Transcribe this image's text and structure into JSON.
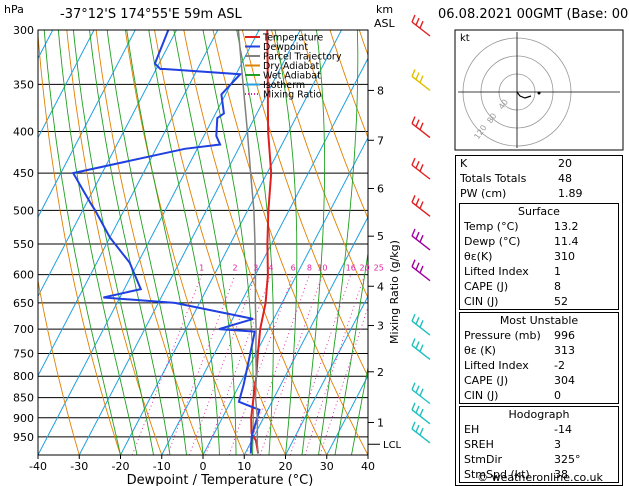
{
  "header": {
    "hpa_label": "hPa",
    "location": "-37°12'S  174°55'E  59m  ASL",
    "km_label": "km",
    "asl_label": "ASL",
    "datetime": "06.08.2021  00GMT  (Base: 00)"
  },
  "legend": [
    {
      "label": "Temperature",
      "color": "#e02020"
    },
    {
      "label": "Dewpoint",
      "color": "#2040e0"
    },
    {
      "label": "Parcel Trajectory",
      "color": "#808080"
    },
    {
      "label": "Dry Adiabat",
      "color": "#e08000"
    },
    {
      "label": "Wet Adiabat",
      "color": "#20a020"
    },
    {
      "label": "Isotherm",
      "color": "#20a0e0"
    },
    {
      "label": "Mixing Ratio",
      "color": "#e020a0"
    }
  ],
  "chart_data": {
    "type": "line",
    "xlabel": "Dewpoint / Temperature (°C)",
    "ylabel_right": "Mixing Ratio (g/kg)",
    "x_ticks": [
      -40,
      -30,
      -20,
      -10,
      0,
      10,
      20,
      30,
      40
    ],
    "pressure_levels": [
      300,
      350,
      400,
      450,
      500,
      550,
      600,
      650,
      700,
      750,
      800,
      850,
      900,
      950
    ],
    "km_ticks": [
      {
        "km": "1",
        "p": 912
      },
      {
        "km": "2",
        "p": 790
      },
      {
        "km": "3",
        "p": 693
      },
      {
        "km": "4",
        "p": 620
      },
      {
        "km": "5",
        "p": 538
      },
      {
        "km": "6",
        "p": 470
      },
      {
        "km": "7",
        "p": 410
      },
      {
        "km": "8",
        "p": 356
      }
    ],
    "lcl_label": "LCL",
    "lcl_p": 970,
    "mixing_ratio_labels": [
      "1",
      "2",
      "3",
      "4",
      "6",
      "8",
      "10",
      "16",
      "20",
      "25"
    ],
    "mixing_ratio_values": [
      1,
      2,
      3,
      4,
      6,
      8,
      10,
      16,
      20,
      25
    ],
    "series": [
      {
        "name": "Temperature",
        "color": "#e02020",
        "points": [
          [
            13.2,
            996
          ],
          [
            11.0,
            960
          ],
          [
            9.0,
            940
          ],
          [
            7.0,
            900
          ],
          [
            5.0,
            850
          ],
          [
            3.0,
            800
          ],
          [
            0.5,
            750
          ],
          [
            -2.0,
            700
          ],
          [
            -4.0,
            650
          ],
          [
            -7.0,
            600
          ],
          [
            -11.0,
            550
          ],
          [
            -15.0,
            500
          ],
          [
            -19.0,
            450
          ],
          [
            -25.0,
            400
          ],
          [
            -31.0,
            350
          ],
          [
            -38.0,
            300
          ]
        ]
      },
      {
        "name": "Dewpoint",
        "color": "#2040e0",
        "points": [
          [
            11.4,
            996
          ],
          [
            9.5,
            950
          ],
          [
            8.0,
            880
          ],
          [
            2.0,
            860
          ],
          [
            1.0,
            820
          ],
          [
            -1.0,
            760
          ],
          [
            -3.0,
            705
          ],
          [
            -12.0,
            700
          ],
          [
            -5.0,
            680
          ],
          [
            -26.0,
            650
          ],
          [
            -44.0,
            640
          ],
          [
            -36.0,
            625
          ],
          [
            -42.0,
            580
          ],
          [
            -50.0,
            540
          ],
          [
            -57.0,
            500
          ],
          [
            -59.0,
            490
          ],
          [
            -67.0,
            450
          ],
          [
            -43.0,
            420
          ],
          [
            -35.0,
            415
          ],
          [
            -37.0,
            405
          ],
          [
            -39.0,
            385
          ],
          [
            -38.0,
            380
          ],
          [
            -41.0,
            360
          ],
          [
            -39.0,
            340
          ],
          [
            -58.0,
            335
          ],
          [
            -59.0,
            335
          ],
          [
            -61.0,
            330
          ],
          [
            -62.0,
            300
          ]
        ]
      },
      {
        "name": "Parcel Trajectory",
        "color": "#808080",
        "points": [
          [
            13.2,
            996
          ],
          [
            11.8,
            970
          ],
          [
            8.5,
            900
          ],
          [
            5.5,
            850
          ],
          [
            3.0,
            800
          ],
          [
            0.0,
            750
          ],
          [
            -3.0,
            700
          ],
          [
            -6.5,
            650
          ],
          [
            -10.0,
            600
          ],
          [
            -14.0,
            550
          ],
          [
            -18.5,
            500
          ],
          [
            -24.0,
            450
          ],
          [
            -30.0,
            400
          ],
          [
            -37.0,
            350
          ],
          [
            -45.0,
            300
          ]
        ]
      }
    ],
    "wind_barbs": [
      {
        "p": 300,
        "color": "#e02020"
      },
      {
        "p": 350,
        "color": "#e0c000"
      },
      {
        "p": 400,
        "color": "#e02020"
      },
      {
        "p": 450,
        "color": "#e02020"
      },
      {
        "p": 500,
        "color": "#e02020"
      },
      {
        "p": 550,
        "color": "#a000a0"
      },
      {
        "p": 600,
        "color": "#a000a0"
      },
      {
        "p": 700,
        "color": "#20c0c0"
      },
      {
        "p": 750,
        "color": "#20c0c0"
      },
      {
        "p": 850,
        "color": "#20c0c0"
      },
      {
        "p": 900,
        "color": "#20c0c0"
      },
      {
        "p": 950,
        "color": "#20c0c0"
      }
    ]
  },
  "hodograph": {
    "unit": "kt",
    "ring_labels": [
      "40",
      "80",
      "120"
    ]
  },
  "indices": [
    {
      "label": "K",
      "value": "20"
    },
    {
      "label": "Totals Totals",
      "value": "48"
    },
    {
      "label": "PW (cm)",
      "value": "1.89"
    }
  ],
  "surface": {
    "title": "Surface",
    "rows": [
      {
        "label": "Temp (°C)",
        "value": "13.2"
      },
      {
        "label": "Dewp (°C)",
        "value": "11.4"
      },
      {
        "label": "θε(K)",
        "value": "310"
      },
      {
        "label": "Lifted Index",
        "value": "1"
      },
      {
        "label": "CAPE (J)",
        "value": "8"
      },
      {
        "label": "CIN (J)",
        "value": "52"
      }
    ]
  },
  "most_unstable": {
    "title": "Most Unstable",
    "rows": [
      {
        "label": "Pressure (mb)",
        "value": "996"
      },
      {
        "label": "θε (K)",
        "value": "313"
      },
      {
        "label": "Lifted Index",
        "value": "-2"
      },
      {
        "label": "CAPE (J)",
        "value": "304"
      },
      {
        "label": "CIN (J)",
        "value": "0"
      }
    ]
  },
  "hodograph_table": {
    "title": "Hodograph",
    "rows": [
      {
        "label": "EH",
        "value": "-14"
      },
      {
        "label": "SREH",
        "value": "3"
      },
      {
        "label": "StmDir",
        "value": "325°"
      },
      {
        "label": "StmSpd (kt)",
        "value": "38"
      }
    ]
  },
  "footer": "© weatheronline.co.uk"
}
